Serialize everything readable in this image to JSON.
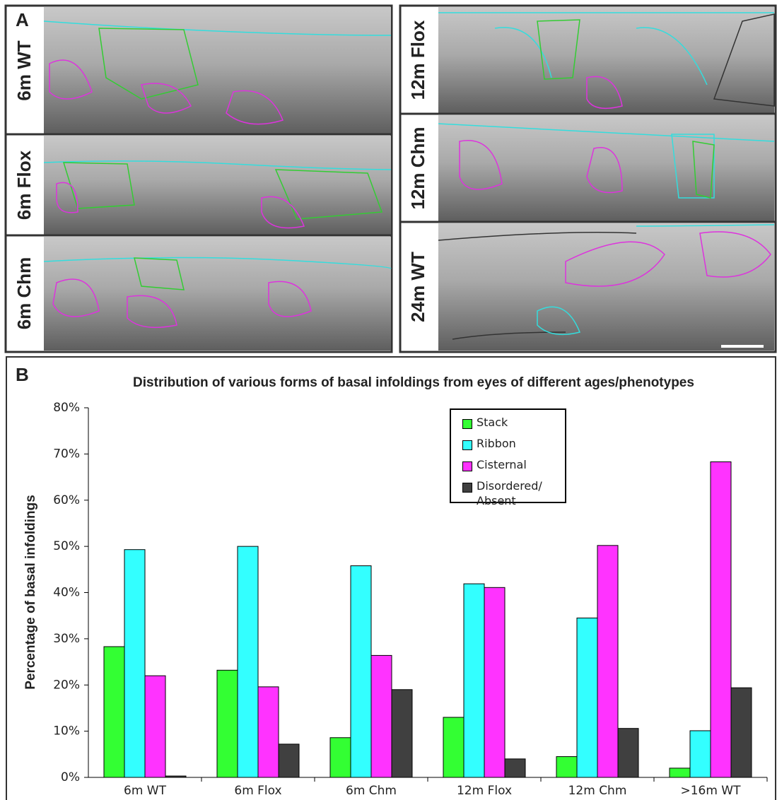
{
  "panel_a": {
    "label": "A",
    "image_labels": [
      "6m WT",
      "6m Flox",
      "6m Chm",
      "12m Flox",
      "12m Chm",
      "24m WT"
    ]
  },
  "chart_data": {
    "type": "bar",
    "panel_label": "B",
    "title": "Distribution of various forms of basal infoldings from eyes of different ages/phenotypes",
    "y_label": "Percentage of basal infoldings",
    "categories": [
      "6m WT",
      "6m Flox",
      "6m Chm",
      "12m Flox",
      "12m Chm",
      ">16m WT"
    ],
    "series": [
      {
        "name": "Stack",
        "color": "#33ff33",
        "values": [
          28.3,
          23.2,
          8.6,
          13.0,
          4.5,
          2.0
        ]
      },
      {
        "name": "Ribbon",
        "color": "#33ffff",
        "values": [
          49.3,
          50.0,
          45.8,
          41.9,
          34.5,
          10.1
        ]
      },
      {
        "name": "Cisternal",
        "color": "#ff33ff",
        "values": [
          22.0,
          19.6,
          26.4,
          41.1,
          50.2,
          68.3
        ]
      },
      {
        "name": "Disordered/ Absent",
        "color": "#404040",
        "values": [
          0.3,
          7.2,
          19.0,
          4.0,
          10.6,
          19.4
        ]
      }
    ],
    "ylim": [
      0,
      80
    ],
    "yticks": [
      {
        "value": 0,
        "label": "0%"
      },
      {
        "value": 10,
        "label": "10%"
      },
      {
        "value": 20,
        "label": "20%"
      },
      {
        "value": 30,
        "label": "30%"
      },
      {
        "value": 40,
        "label": "40%"
      },
      {
        "value": 50,
        "label": "50%"
      },
      {
        "value": 60,
        "label": "60%"
      },
      {
        "value": 70,
        "label": "70%"
      },
      {
        "value": 80,
        "label": "80%"
      }
    ],
    "grid": false
  }
}
